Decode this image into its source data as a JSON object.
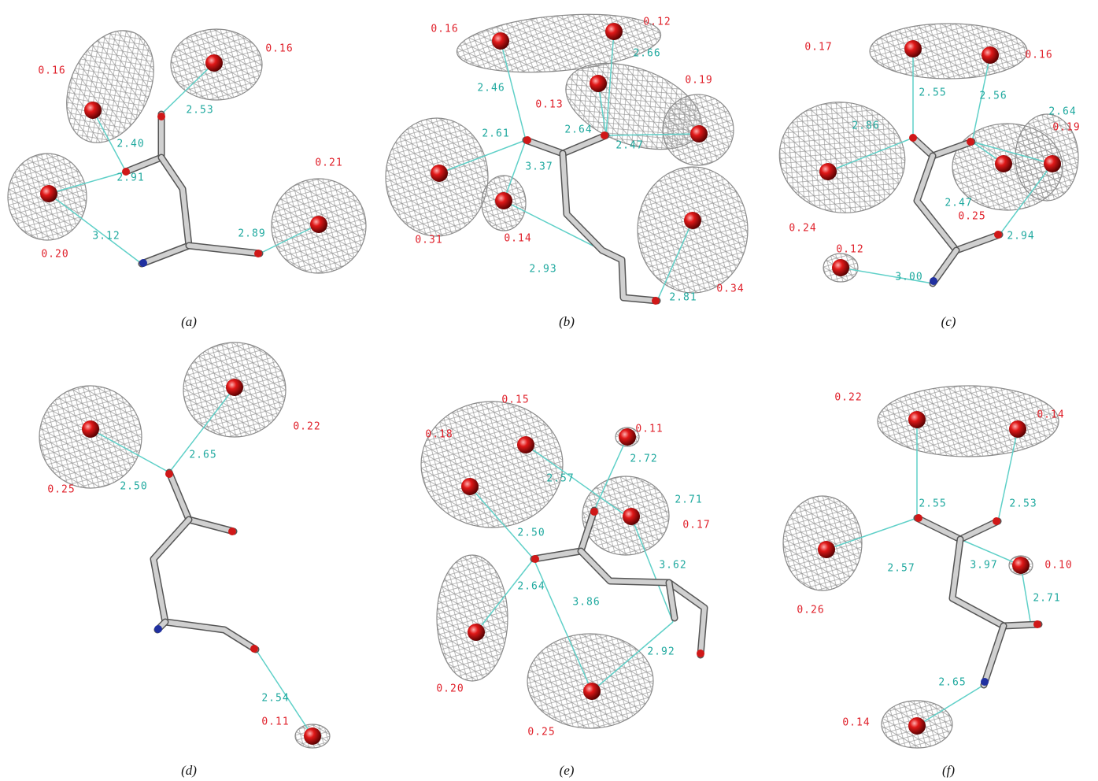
{
  "panels": [
    {
      "label": "(a)",
      "occupancies": [
        "0.16",
        "0.16",
        "0.21",
        "0.20"
      ],
      "distances": [
        "2.53",
        "2.40",
        "2.91",
        "3.12",
        "2.89"
      ]
    },
    {
      "label": "(b)",
      "occupancies": [
        "0.16",
        "0.12",
        "0.13",
        "0.19",
        "0.31",
        "0.14",
        "0.34"
      ],
      "distances": [
        "2.66",
        "2.46",
        "2.61",
        "2.64",
        "2.47",
        "3.37",
        "2.93",
        "2.81"
      ]
    },
    {
      "label": "(c)",
      "occupancies": [
        "0.17",
        "0.16",
        "0.19",
        "0.24",
        "0.25",
        "0.12"
      ],
      "distances": [
        "2.55",
        "2.56",
        "2.86",
        "2.64",
        "2.47",
        "2.94",
        "3.00"
      ]
    },
    {
      "label": "(d)",
      "occupancies": [
        "0.22",
        "0.25",
        "0.11"
      ],
      "distances": [
        "2.65",
        "2.50",
        "2.54"
      ]
    },
    {
      "label": "(e)",
      "occupancies": [
        "0.15",
        "0.11",
        "0.18",
        "0.17",
        "0.20",
        "0.25"
      ],
      "distances": [
        "2.72",
        "2.57",
        "2.71",
        "2.50",
        "3.62",
        "2.64",
        "3.86",
        "2.92"
      ]
    },
    {
      "label": "(f)",
      "occupancies": [
        "0.22",
        "0.14",
        "0.10",
        "0.26",
        "0.14"
      ],
      "distances": [
        "2.55",
        "2.53",
        "2.57",
        "3.97",
        "2.71",
        "2.65"
      ]
    }
  ]
}
